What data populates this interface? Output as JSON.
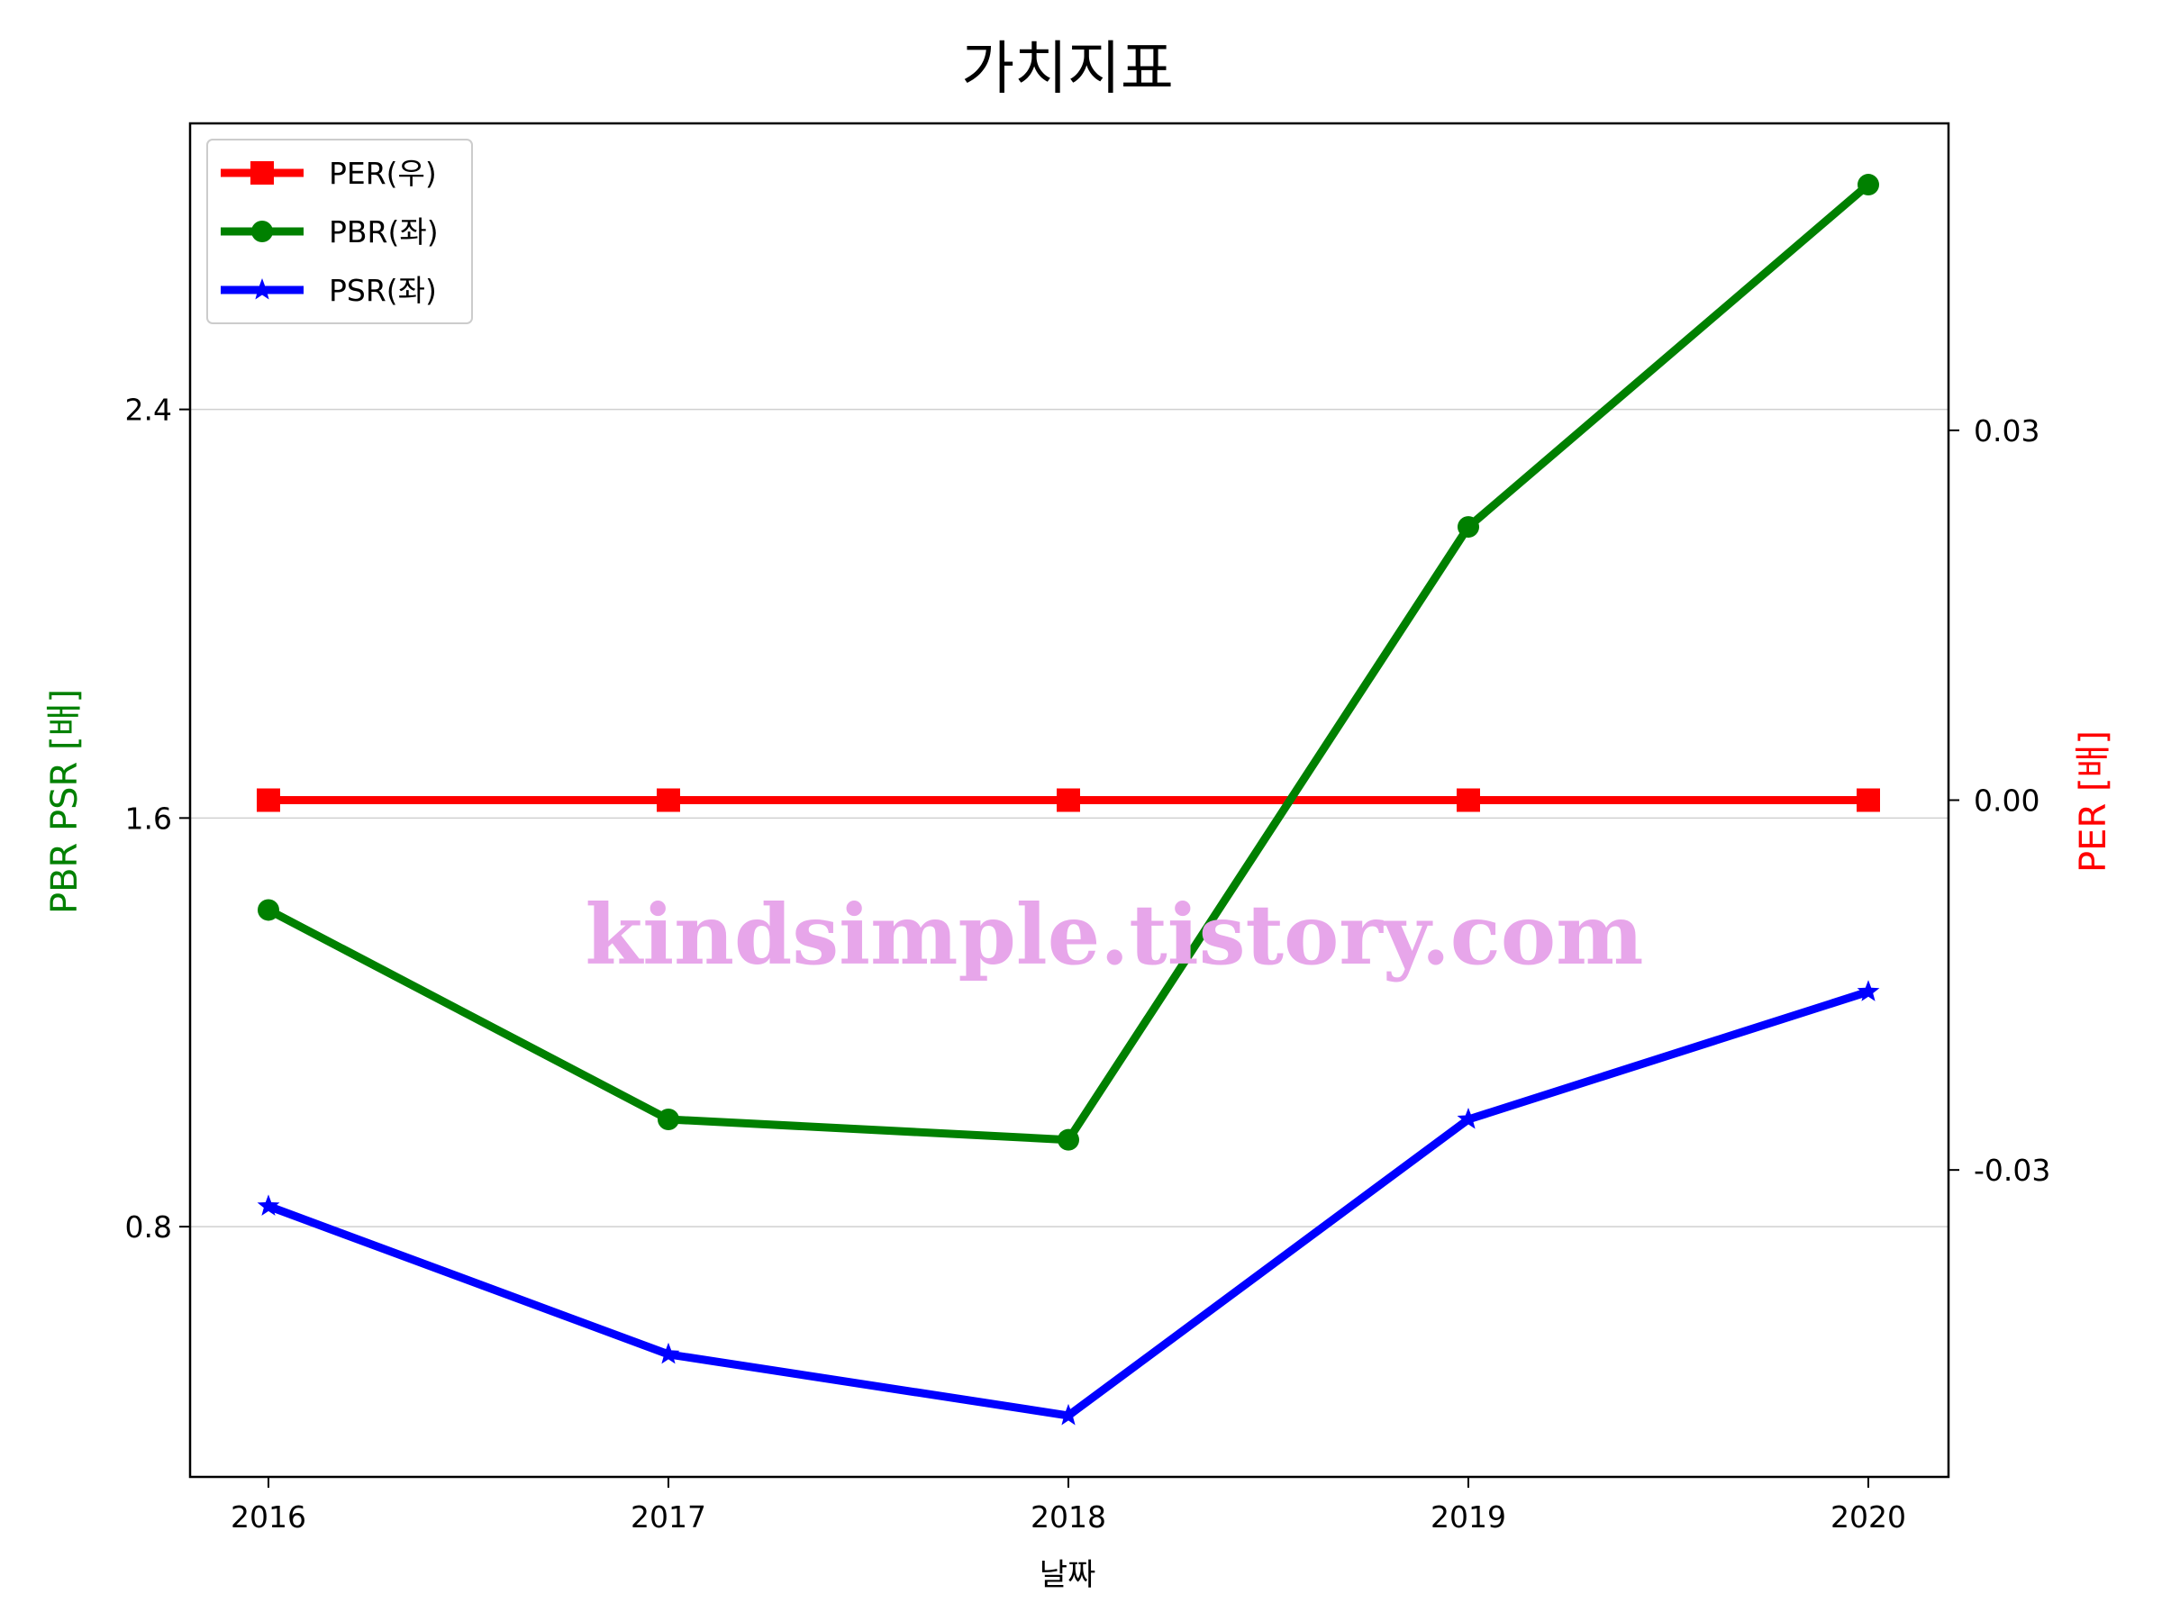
{
  "chart_data": {
    "type": "line",
    "title": "가치지표",
    "xlabel": "날짜",
    "ylabel_left": "PBR PSR [배]",
    "ylabel_right": "PER [배]",
    "categories": [
      "2016",
      "2017",
      "2018",
      "2019",
      "2020"
    ],
    "left_axis": {
      "ylim": [
        0.31,
        2.96
      ],
      "ticks": [
        0.8,
        1.6,
        2.4
      ],
      "tick_labels": [
        "0.8",
        "1.6",
        "2.4"
      ],
      "grid": true
    },
    "right_axis": {
      "ylim": [
        -0.0549,
        0.0549
      ],
      "ticks": [
        -0.03,
        0.0,
        0.03
      ],
      "tick_labels": [
        "-0.03",
        "0.00",
        "0.03"
      ]
    },
    "series": [
      {
        "name": "PER(우)",
        "axis": "right",
        "color": "#ff0000",
        "marker": "square",
        "values": [
          0,
          0,
          0,
          0,
          0
        ]
      },
      {
        "name": "PBR(좌)",
        "axis": "left",
        "color": "#008000",
        "marker": "circle",
        "values": [
          1.42,
          1.01,
          0.97,
          2.17,
          2.84
        ]
      },
      {
        "name": "PSR(좌)",
        "axis": "left",
        "color": "#0000ff",
        "marker": "star",
        "values": [
          0.84,
          0.55,
          0.43,
          1.01,
          1.26
        ]
      }
    ],
    "legend_position": "top-left",
    "watermark": "kindsimple.tistory.com"
  }
}
